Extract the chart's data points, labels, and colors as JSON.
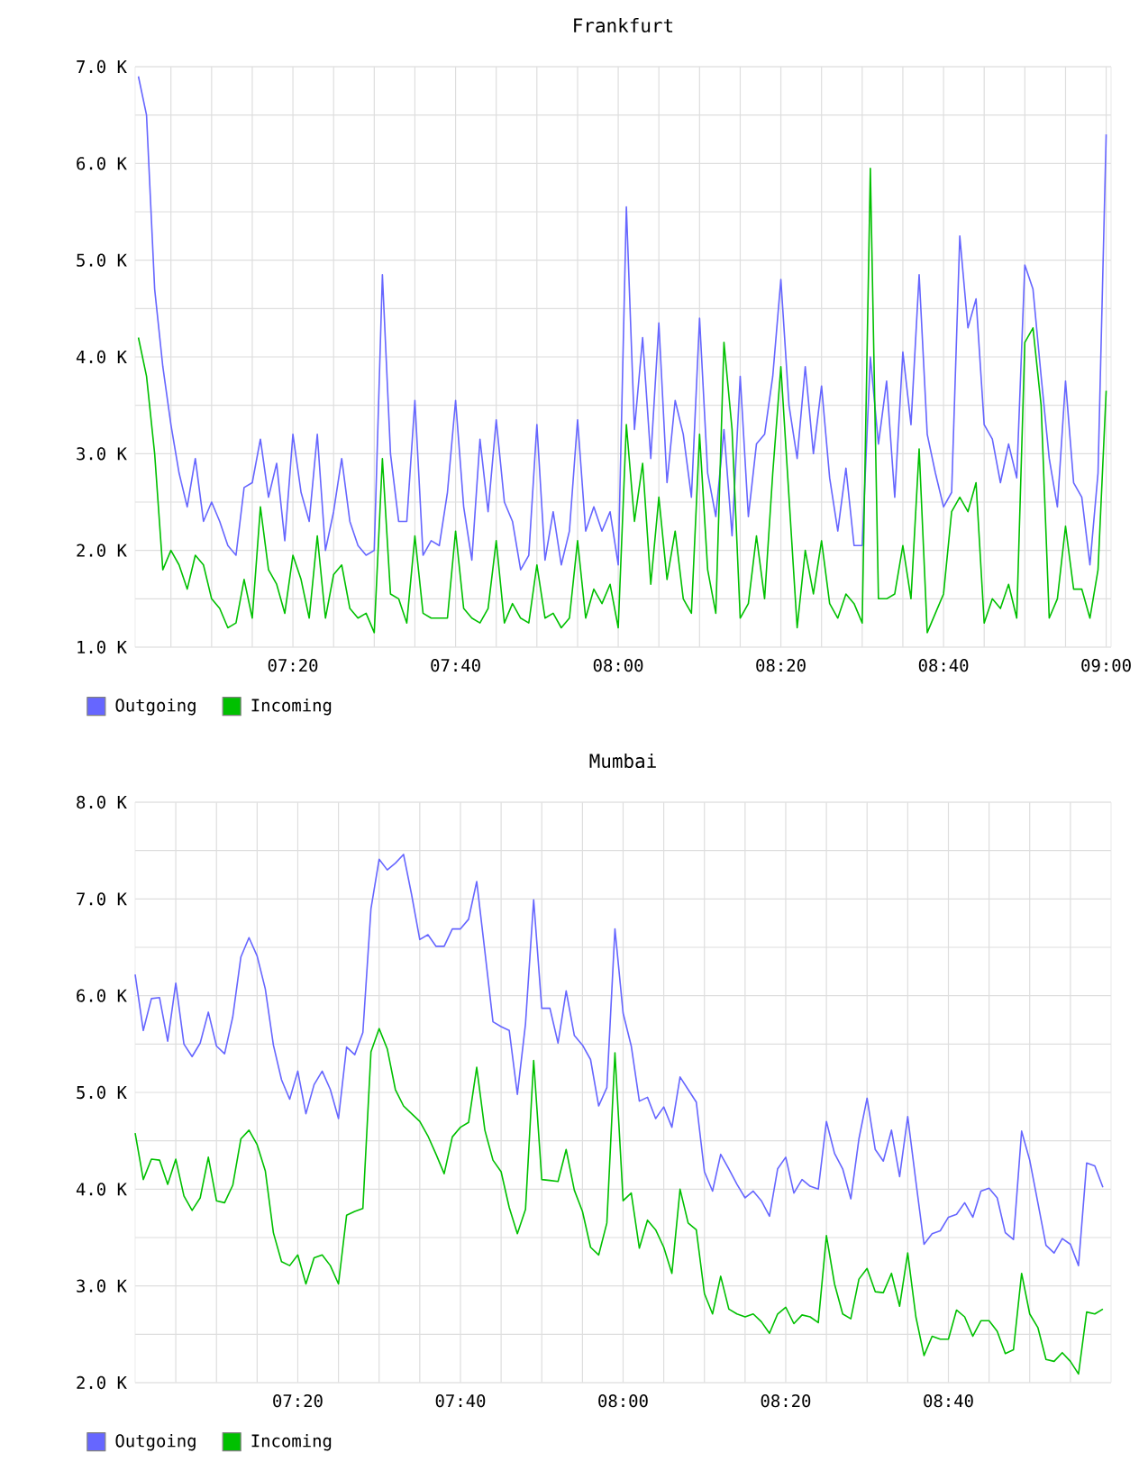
{
  "chart_data": [
    {
      "type": "line",
      "title": "Frankfurt",
      "x": [
        7.0167,
        7.0333,
        7.05,
        7.0667,
        7.0833,
        7.1,
        7.1167,
        7.1333,
        7.15,
        7.1667,
        7.1833,
        7.2,
        7.2167,
        7.2333,
        7.25,
        7.2667,
        7.2833,
        7.3,
        7.3167,
        7.3333,
        7.35,
        7.3667,
        7.3833,
        7.4,
        7.4167,
        7.4333,
        7.45,
        7.4667,
        7.4833,
        7.5,
        7.5167,
        7.5333,
        7.55,
        7.5667,
        7.5833,
        7.6,
        7.6167,
        7.6333,
        7.65,
        7.6667,
        7.6833,
        7.7,
        7.7167,
        7.7333,
        7.75,
        7.7667,
        7.7833,
        7.8,
        7.8167,
        7.8333,
        7.85,
        7.8667,
        7.8833,
        7.9,
        7.9167,
        7.9333,
        7.95,
        7.9667,
        7.9833,
        8,
        8.0167,
        8.0333,
        8.05,
        8.0667,
        8.0833,
        8.1,
        8.1167,
        8.1333,
        8.15,
        8.1667,
        8.1833,
        8.2,
        8.2167,
        8.2333,
        8.25,
        8.2667,
        8.2833,
        8.3,
        8.3167,
        8.3333,
        8.35,
        8.3667,
        8.3833,
        8.4,
        8.4167,
        8.4333,
        8.45,
        8.4667,
        8.4833,
        8.5,
        8.5167,
        8.5333,
        8.55,
        8.5667,
        8.5833,
        8.6,
        8.6167,
        8.6333,
        8.65,
        8.6667,
        8.6833,
        8.7,
        8.7167,
        8.7333,
        8.75,
        8.7667,
        8.7833,
        8.8,
        8.8167,
        8.8333,
        8.85,
        8.8667,
        8.8833,
        8.9,
        8.9167,
        8.9333,
        8.95,
        8.9667,
        8.9833,
        9
      ],
      "xlim": [
        7.01,
        9.01
      ],
      "xticks": [
        {
          "value": 7.0833,
          "label": null
        },
        {
          "value": 7.1667,
          "label": null
        },
        {
          "value": 7.25,
          "label": null
        },
        {
          "value": 7.3333,
          "label": "07:20"
        },
        {
          "value": 7.4167,
          "label": null
        },
        {
          "value": 7.5,
          "label": null
        },
        {
          "value": 7.5833,
          "label": null
        },
        {
          "value": 7.6667,
          "label": "07:40"
        },
        {
          "value": 7.75,
          "label": null
        },
        {
          "value": 7.8333,
          "label": null
        },
        {
          "value": 7.9167,
          "label": null
        },
        {
          "value": 8,
          "label": "08:00"
        },
        {
          "value": 8.0833,
          "label": null
        },
        {
          "value": 8.1667,
          "label": null
        },
        {
          "value": 8.25,
          "label": null
        },
        {
          "value": 8.3333,
          "label": "08:20"
        },
        {
          "value": 8.4167,
          "label": null
        },
        {
          "value": 8.5,
          "label": null
        },
        {
          "value": 8.5833,
          "label": null
        },
        {
          "value": 8.6667,
          "label": "08:40"
        },
        {
          "value": 8.75,
          "label": null
        },
        {
          "value": 8.8333,
          "label": null
        },
        {
          "value": 8.9167,
          "label": null
        },
        {
          "value": 9,
          "label": "09:00"
        }
      ],
      "ylim": [
        1,
        7
      ],
      "yticks": [
        {
          "value": 1,
          "label": "1.0 K"
        },
        {
          "value": 1.5,
          "label": null
        },
        {
          "value": 2,
          "label": "2.0 K"
        },
        {
          "value": 2.5,
          "label": null
        },
        {
          "value": 3,
          "label": "3.0 K"
        },
        {
          "value": 3.5,
          "label": null
        },
        {
          "value": 4,
          "label": "4.0 K"
        },
        {
          "value": 4.5,
          "label": null
        },
        {
          "value": 5,
          "label": "5.0 K"
        },
        {
          "value": 5.5,
          "label": null
        },
        {
          "value": 6,
          "label": "6.0 K"
        },
        {
          "value": 6.5,
          "label": null
        },
        {
          "value": 7,
          "label": "7.0 K"
        }
      ],
      "grid": true,
      "legend": "bottom left",
      "series": [
        {
          "name": "Outgoing",
          "color": "#6666ff",
          "values": [
            6.9,
            6.5,
            4.7,
            3.9,
            3.3,
            2.8,
            2.45,
            2.95,
            2.3,
            2.5,
            2.3,
            2.05,
            1.95,
            2.65,
            2.7,
            3.15,
            2.55,
            2.9,
            2.1,
            3.2,
            2.6,
            2.3,
            3.2,
            2.0,
            2.4,
            2.95,
            2.3,
            2.05,
            1.95,
            2.0,
            4.85,
            3.0,
            2.3,
            2.3,
            3.55,
            1.95,
            2.1,
            2.05,
            2.6,
            3.55,
            2.45,
            1.9,
            3.15,
            2.4,
            3.35,
            2.5,
            2.3,
            1.8,
            1.95,
            3.3,
            1.9,
            2.4,
            1.85,
            2.2,
            3.35,
            2.2,
            2.45,
            2.2,
            2.4,
            1.85,
            5.55,
            3.25,
            4.2,
            2.95,
            4.35,
            2.7,
            3.55,
            3.2,
            2.55,
            4.4,
            2.8,
            2.35,
            3.25,
            2.15,
            3.8,
            2.35,
            3.1,
            3.2,
            3.8,
            4.8,
            3.5,
            2.95,
            3.9,
            3.0,
            3.7,
            2.75,
            2.2,
            2.85,
            2.05,
            2.05,
            4.0,
            3.1,
            3.75,
            2.55,
            4.05,
            3.3,
            4.85,
            3.2,
            2.8,
            2.45,
            2.6,
            5.25,
            4.3,
            4.6,
            3.3,
            3.15,
            2.7,
            3.1,
            2.75,
            4.95,
            4.7,
            3.8,
            2.95,
            2.45,
            3.75,
            2.7,
            2.55,
            1.85,
            2.8,
            6.3
          ]
        },
        {
          "name": "Incoming",
          "color": "#00c000",
          "values": [
            4.2,
            3.8,
            3.0,
            1.8,
            2.0,
            1.85,
            1.6,
            1.95,
            1.85,
            1.5,
            1.4,
            1.2,
            1.25,
            1.7,
            1.3,
            2.45,
            1.8,
            1.65,
            1.35,
            1.95,
            1.7,
            1.3,
            2.15,
            1.3,
            1.75,
            1.85,
            1.4,
            1.3,
            1.35,
            1.15,
            2.95,
            1.55,
            1.5,
            1.25,
            2.15,
            1.35,
            1.3,
            1.3,
            1.3,
            2.2,
            1.4,
            1.3,
            1.25,
            1.4,
            2.1,
            1.25,
            1.45,
            1.3,
            1.25,
            1.85,
            1.3,
            1.35,
            1.2,
            1.3,
            2.1,
            1.3,
            1.6,
            1.45,
            1.65,
            1.2,
            3.3,
            2.3,
            2.9,
            1.65,
            2.55,
            1.7,
            2.2,
            1.5,
            1.35,
            3.2,
            1.8,
            1.35,
            4.15,
            3.25,
            1.3,
            1.45,
            2.15,
            1.5,
            2.8,
            3.9,
            2.55,
            1.2,
            2.0,
            1.55,
            2.1,
            1.45,
            1.3,
            1.55,
            1.45,
            1.25,
            5.95,
            1.5,
            1.5,
            1.55,
            2.05,
            1.5,
            3.05,
            1.15,
            1.35,
            1.55,
            2.4,
            2.55,
            2.4,
            2.7,
            1.25,
            1.5,
            1.4,
            1.65,
            1.3,
            4.15,
            4.3,
            3.5,
            1.3,
            1.5,
            2.25,
            1.6,
            1.6,
            1.3,
            1.8,
            3.65
          ]
        }
      ]
    },
    {
      "type": "line",
      "title": "Mumbai",
      "x": [
        7,
        7.0167,
        7.0333,
        7.05,
        7.0667,
        7.0833,
        7.1,
        7.1167,
        7.1333,
        7.15,
        7.1667,
        7.1833,
        7.2,
        7.2167,
        7.2333,
        7.25,
        7.2667,
        7.2833,
        7.3,
        7.3167,
        7.3333,
        7.35,
        7.3667,
        7.3833,
        7.4,
        7.4167,
        7.4333,
        7.45,
        7.4667,
        7.4833,
        7.5,
        7.5167,
        7.5333,
        7.55,
        7.5667,
        7.5833,
        7.6,
        7.6167,
        7.6333,
        7.65,
        7.6667,
        7.6833,
        7.7,
        7.7167,
        7.7333,
        7.75,
        7.7667,
        7.7833,
        7.8,
        7.8167,
        7.8333,
        7.85,
        7.8667,
        7.8833,
        7.9,
        7.9167,
        7.9333,
        7.95,
        7.9667,
        7.9833,
        8,
        8.0167,
        8.0333,
        8.05,
        8.0667,
        8.0833,
        8.1,
        8.1167,
        8.1333,
        8.15,
        8.1667,
        8.1833,
        8.2,
        8.2167,
        8.2333,
        8.25,
        8.2667,
        8.2833,
        8.3,
        8.3167,
        8.3333,
        8.35,
        8.3667,
        8.3833,
        8.4,
        8.4167,
        8.4333,
        8.45,
        8.4667,
        8.4833,
        8.5,
        8.5167,
        8.5333,
        8.55,
        8.5667,
        8.5833,
        8.6,
        8.6167,
        8.6333,
        8.65,
        8.6667,
        8.6833,
        8.7,
        8.7167,
        8.7333,
        8.75,
        8.7667,
        8.7833,
        8.8,
        8.8167,
        8.8333,
        8.85,
        8.8667,
        8.8833,
        8.9,
        8.9167,
        8.9333,
        8.95,
        8.9667,
        8.9833
      ],
      "xlim": [
        7,
        9
      ],
      "xticks": [
        {
          "value": 7.0833,
          "label": null
        },
        {
          "value": 7.1667,
          "label": null
        },
        {
          "value": 7.25,
          "label": null
        },
        {
          "value": 7.3333,
          "label": "07:20"
        },
        {
          "value": 7.4167,
          "label": null
        },
        {
          "value": 7.5,
          "label": null
        },
        {
          "value": 7.5833,
          "label": null
        },
        {
          "value": 7.6667,
          "label": "07:40"
        },
        {
          "value": 7.75,
          "label": null
        },
        {
          "value": 7.8333,
          "label": null
        },
        {
          "value": 7.9167,
          "label": null
        },
        {
          "value": 8,
          "label": "08:00"
        },
        {
          "value": 8.0833,
          "label": null
        },
        {
          "value": 8.1667,
          "label": null
        },
        {
          "value": 8.25,
          "label": null
        },
        {
          "value": 8.3333,
          "label": "08:20"
        },
        {
          "value": 8.4167,
          "label": null
        },
        {
          "value": 8.5,
          "label": null
        },
        {
          "value": 8.5833,
          "label": null
        },
        {
          "value": 8.6667,
          "label": "08:40"
        },
        {
          "value": 8.75,
          "label": null
        },
        {
          "value": 8.8333,
          "label": null
        },
        {
          "value": 8.9167,
          "label": null
        }
      ],
      "ylim": [
        2,
        8
      ],
      "yticks": [
        {
          "value": 2,
          "label": "2.0 K"
        },
        {
          "value": 2.5,
          "label": null
        },
        {
          "value": 3,
          "label": "3.0 K"
        },
        {
          "value": 3.5,
          "label": null
        },
        {
          "value": 4,
          "label": "4.0 K"
        },
        {
          "value": 4.5,
          "label": null
        },
        {
          "value": 5,
          "label": "5.0 K"
        },
        {
          "value": 5.5,
          "label": null
        },
        {
          "value": 6,
          "label": "6.0 K"
        },
        {
          "value": 6.5,
          "label": null
        },
        {
          "value": 7,
          "label": "7.0 K"
        },
        {
          "value": 7.5,
          "label": null
        },
        {
          "value": 8,
          "label": "8.0 K"
        }
      ],
      "grid": true,
      "legend": "bottom left",
      "series": [
        {
          "name": "Outgoing",
          "color": "#6666ff",
          "values": [
            6.22,
            5.64,
            5.97,
            5.98,
            5.53,
            6.13,
            5.5,
            5.37,
            5.51,
            5.83,
            5.48,
            5.4,
            5.78,
            6.4,
            6.6,
            6.41,
            6.07,
            5.49,
            5.13,
            4.93,
            5.22,
            4.78,
            5.08,
            5.22,
            5.03,
            4.73,
            5.47,
            5.39,
            5.62,
            6.9,
            7.41,
            7.3,
            7.37,
            7.46,
            7.04,
            6.58,
            6.63,
            6.51,
            6.51,
            6.69,
            6.69,
            6.79,
            7.18,
            6.46,
            5.73,
            5.68,
            5.64,
            4.98,
            5.71,
            6.99,
            5.87,
            5.87,
            5.51,
            6.05,
            5.59,
            5.49,
            5.34,
            4.86,
            5.05,
            6.69,
            5.82,
            5.48,
            4.91,
            4.95,
            4.73,
            4.85,
            4.64,
            5.16,
            5.03,
            4.9,
            4.18,
            3.98,
            4.36,
            4.21,
            4.05,
            3.91,
            3.98,
            3.88,
            3.72,
            4.21,
            4.33,
            3.96,
            4.1,
            4.03,
            4.0,
            4.7,
            4.37,
            4.21,
            3.9,
            4.52,
            4.94,
            4.41,
            4.29,
            4.61,
            4.13,
            4.75,
            4.08,
            3.43,
            3.54,
            3.57,
            3.71,
            3.74,
            3.86,
            3.71,
            3.98,
            4.01,
            3.91,
            3.55,
            3.48,
            4.6,
            4.3,
            3.86,
            3.42,
            3.34,
            3.49,
            3.43,
            3.21,
            4.27,
            4.24,
            4.02
          ]
        },
        {
          "name": "Incoming",
          "color": "#00c000",
          "values": [
            4.58,
            4.1,
            4.31,
            4.3,
            4.05,
            4.31,
            3.93,
            3.78,
            3.91,
            4.33,
            3.88,
            3.86,
            4.04,
            4.52,
            4.61,
            4.46,
            4.19,
            3.55,
            3.25,
            3.21,
            3.32,
            3.02,
            3.29,
            3.32,
            3.21,
            3.02,
            3.73,
            3.77,
            3.8,
            5.42,
            5.66,
            5.45,
            5.03,
            4.86,
            4.78,
            4.7,
            4.55,
            4.36,
            4.16,
            4.54,
            4.64,
            4.69,
            5.26,
            4.61,
            4.3,
            4.18,
            3.81,
            3.54,
            3.79,
            5.33,
            4.1,
            4.09,
            4.08,
            4.41,
            3.99,
            3.77,
            3.4,
            3.32,
            3.65,
            5.41,
            3.88,
            3.96,
            3.39,
            3.68,
            3.58,
            3.4,
            3.13,
            4.0,
            3.65,
            3.58,
            2.92,
            2.71,
            3.1,
            2.76,
            2.71,
            2.68,
            2.71,
            2.63,
            2.51,
            2.71,
            2.78,
            2.61,
            2.7,
            2.68,
            2.62,
            3.52,
            3.02,
            2.71,
            2.66,
            3.07,
            3.18,
            2.94,
            2.93,
            3.13,
            2.79,
            3.34,
            2.68,
            2.28,
            2.48,
            2.45,
            2.45,
            2.75,
            2.68,
            2.48,
            2.64,
            2.64,
            2.53,
            2.3,
            2.34,
            3.13,
            2.71,
            2.57,
            2.24,
            2.22,
            2.31,
            2.22,
            2.09,
            2.73,
            2.71,
            2.76
          ]
        }
      ]
    }
  ]
}
